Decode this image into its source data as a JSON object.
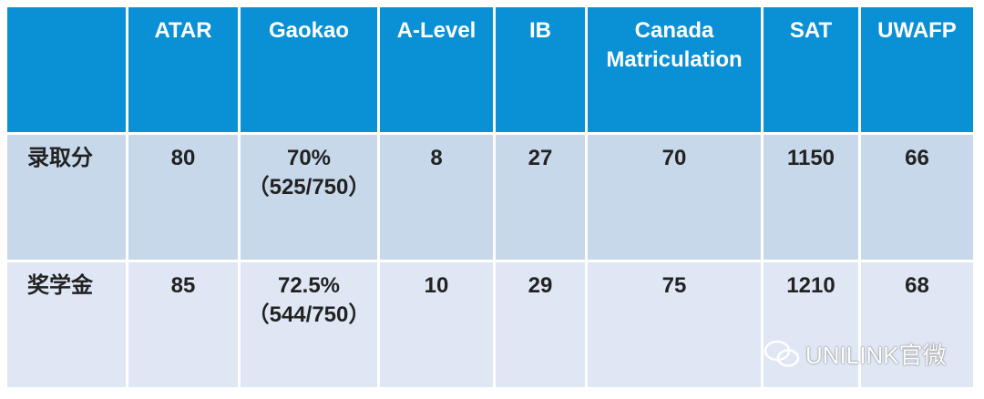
{
  "table": {
    "header": [
      "ATAR",
      "Gaokao",
      "A-Level",
      "IB",
      "Canada Matriculation",
      "SAT",
      "UWAFP"
    ],
    "rows": [
      {
        "label": "录取分",
        "cells": [
          "80",
          [
            "70%",
            "（525/750）"
          ],
          "8",
          "27",
          "70",
          "1150",
          "66"
        ]
      },
      {
        "label": "奖学金",
        "cells": [
          "85",
          [
            "72.5%",
            "（544/750）"
          ],
          "10",
          "29",
          "75",
          "1210",
          "68"
        ]
      }
    ]
  },
  "watermark": "UNILINK官微"
}
